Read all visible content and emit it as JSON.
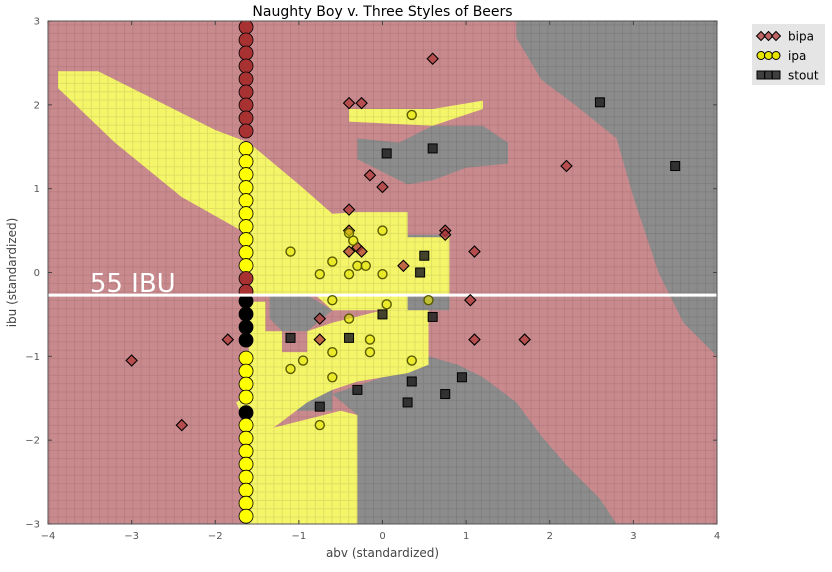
{
  "chart_data": {
    "type": "scatter",
    "title": "Naughty Boy v. Three Styles of Beers",
    "xlabel": "abv (standardized)",
    "ylabel": "ibu (standardized)",
    "xlim": [
      -4,
      4
    ],
    "ylim": [
      -3,
      3
    ],
    "x_ticks": [
      -4,
      -3,
      -2,
      -1,
      0,
      1,
      2,
      3,
      4
    ],
    "y_ticks": [
      -3,
      -2,
      -1,
      0,
      1,
      2,
      3
    ],
    "grid": false,
    "legend_placement": "outside-top-right",
    "annotation": {
      "text": "55 IBU",
      "y": -0.27
    },
    "region_colors": {
      "bipa": "#c98a8e",
      "ipa": "#f5f56a",
      "stout": "#8c8c8c"
    },
    "decision_regions": {
      "ipa": [
        [
          [
            -3.88,
            2.4
          ],
          [
            -3.4,
            2.4
          ],
          [
            -2.6,
            2.0
          ],
          [
            -2.0,
            1.7
          ],
          [
            -1.6,
            1.55
          ],
          [
            -1.0,
            1.05
          ],
          [
            -0.6,
            0.7
          ],
          [
            -0.3,
            0.72
          ],
          [
            0.3,
            0.72
          ],
          [
            0.3,
            0.42
          ],
          [
            0.8,
            0.42
          ],
          [
            0.8,
            -0.27
          ],
          [
            0.3,
            -0.27
          ],
          [
            0.3,
            -0.45
          ],
          [
            -0.6,
            -0.45
          ],
          [
            -0.8,
            -0.27
          ],
          [
            -1.6,
            -0.27
          ],
          [
            -1.6,
            0.45
          ],
          [
            -2.4,
            0.9
          ],
          [
            -3.2,
            1.55
          ],
          [
            -3.88,
            2.2
          ]
        ],
        [
          [
            -1.6,
            -0.35
          ],
          [
            -1.4,
            -0.35
          ],
          [
            -1.4,
            -0.7
          ],
          [
            -1.2,
            -0.7
          ],
          [
            -1.2,
            -0.95
          ],
          [
            -0.9,
            -0.95
          ],
          [
            -0.9,
            -0.7
          ],
          [
            -0.6,
            -0.6
          ],
          [
            0.0,
            -0.45
          ],
          [
            0.55,
            -0.45
          ],
          [
            0.55,
            -1.1
          ],
          [
            0.3,
            -1.2
          ],
          [
            0.0,
            -1.25
          ],
          [
            -0.3,
            -1.3
          ],
          [
            -0.6,
            -1.4
          ],
          [
            -0.9,
            -1.55
          ],
          [
            -1.3,
            -1.85
          ],
          [
            -1.6,
            -1.9
          ],
          [
            -1.75,
            -1.55
          ],
          [
            -1.6,
            -1.45
          ]
        ],
        [
          [
            -1.6,
            -1.9
          ],
          [
            -1.3,
            -1.85
          ],
          [
            -0.9,
            -1.75
          ],
          [
            -0.5,
            -1.65
          ],
          [
            -0.3,
            -1.7
          ],
          [
            -0.3,
            -3.0
          ],
          [
            -1.6,
            -3.0
          ]
        ],
        [
          [
            -0.4,
            1.95
          ],
          [
            0.6,
            1.95
          ],
          [
            1.2,
            2.05
          ],
          [
            1.2,
            1.95
          ],
          [
            0.6,
            1.75
          ],
          [
            -0.4,
            1.8
          ]
        ]
      ],
      "stout": [
        [
          [
            1.6,
            3.0
          ],
          [
            4.0,
            3.0
          ],
          [
            4.0,
            -1.0
          ],
          [
            3.6,
            -0.6
          ],
          [
            3.3,
            0.0
          ],
          [
            3.0,
            0.9
          ],
          [
            2.8,
            1.6
          ],
          [
            2.3,
            2.0
          ],
          [
            1.9,
            2.3
          ],
          [
            1.6,
            2.8
          ]
        ],
        [
          [
            -0.3,
            1.6
          ],
          [
            0.2,
            1.55
          ],
          [
            0.6,
            1.75
          ],
          [
            1.2,
            1.75
          ],
          [
            1.5,
            1.55
          ],
          [
            1.5,
            1.3
          ],
          [
            1.0,
            1.25
          ],
          [
            0.6,
            1.1
          ],
          [
            0.3,
            1.05
          ],
          [
            -0.3,
            1.35
          ]
        ],
        [
          [
            -1.35,
            -0.27
          ],
          [
            -0.9,
            -0.27
          ],
          [
            -0.6,
            -0.45
          ],
          [
            -0.9,
            -0.7
          ],
          [
            -1.2,
            -0.7
          ],
          [
            -1.35,
            -0.55
          ]
        ],
        [
          [
            -0.3,
            0.72
          ],
          [
            0.3,
            0.72
          ],
          [
            0.3,
            0.45
          ],
          [
            0.8,
            0.45
          ],
          [
            0.8,
            -0.45
          ],
          [
            0.55,
            -0.45
          ],
          [
            0.55,
            -1.0
          ],
          [
            0.9,
            -1.1
          ],
          [
            1.2,
            -1.25
          ],
          [
            1.6,
            -1.55
          ],
          [
            1.9,
            -1.95
          ],
          [
            2.2,
            -2.3
          ],
          [
            2.6,
            -2.7
          ],
          [
            2.8,
            -3.0
          ],
          [
            -0.3,
            -3.0
          ],
          [
            -0.3,
            -1.7
          ],
          [
            -0.6,
            -1.45
          ],
          [
            0.0,
            -1.25
          ],
          [
            0.3,
            -1.2
          ],
          [
            0.0,
            -0.45
          ],
          [
            -0.3,
            -0.27
          ],
          [
            -0.3,
            0.45
          ]
        ],
        [
          [
            -1.2,
            -1.4
          ],
          [
            -0.6,
            -1.4
          ],
          [
            -0.6,
            -1.65
          ],
          [
            -1.2,
            -1.65
          ]
        ]
      ]
    },
    "boundary_strip": {
      "x": -1.56,
      "segments": [
        {
          "class": "bipa",
          "y": [
            3.0,
            1.55
          ]
        },
        {
          "class": "ipa",
          "y": [
            1.55,
            0.0
          ]
        },
        {
          "class": "bipa",
          "y": [
            0.0,
            -0.27
          ]
        },
        {
          "class": "stout",
          "y": [
            -0.27,
            -0.95
          ]
        },
        {
          "class": "ipa",
          "y": [
            -0.95,
            -1.6
          ]
        },
        {
          "class": "stout",
          "y": [
            -1.6,
            -1.75
          ]
        },
        {
          "class": "ipa",
          "y": [
            -1.75,
            -3.0
          ]
        }
      ]
    },
    "series": [
      {
        "name": "bipa",
        "marker": "diamond",
        "color": "#b03a3a",
        "points": [
          [
            0.6,
            2.55
          ],
          [
            -0.4,
            2.02
          ],
          [
            -0.25,
            2.02
          ],
          [
            -0.15,
            1.16
          ],
          [
            0.0,
            1.02
          ],
          [
            -0.4,
            0.75
          ],
          [
            -0.4,
            0.5
          ],
          [
            0.75,
            0.5
          ],
          [
            0.75,
            0.45
          ],
          [
            -0.3,
            0.3
          ],
          [
            -0.25,
            0.25
          ],
          [
            -0.4,
            0.25
          ],
          [
            0.25,
            0.08
          ],
          [
            1.1,
            0.25
          ],
          [
            2.2,
            1.27
          ],
          [
            1.05,
            -0.33
          ],
          [
            1.1,
            -0.8
          ],
          [
            1.7,
            -0.8
          ],
          [
            -0.75,
            -0.55
          ],
          [
            -0.75,
            -0.8
          ],
          [
            -1.85,
            -0.8
          ],
          [
            -3.0,
            -1.05
          ],
          [
            -2.4,
            -1.82
          ]
        ]
      },
      {
        "name": "ipa",
        "marker": "circle",
        "color": "#e6e600",
        "points": [
          [
            0.35,
            1.88
          ],
          [
            0.0,
            0.5
          ],
          [
            -0.4,
            0.47
          ],
          [
            -0.35,
            0.38
          ],
          [
            -0.3,
            0.08
          ],
          [
            -0.2,
            0.08
          ],
          [
            -1.1,
            0.25
          ],
          [
            -0.6,
            0.13
          ],
          [
            -0.75,
            -0.02
          ],
          [
            -0.4,
            -0.02
          ],
          [
            0.0,
            -0.02
          ],
          [
            -0.6,
            -0.33
          ],
          [
            0.05,
            -0.38
          ],
          [
            0.55,
            -0.33
          ],
          [
            -0.4,
            -0.55
          ],
          [
            -0.15,
            -0.8
          ],
          [
            -0.6,
            -0.95
          ],
          [
            -0.15,
            -0.95
          ],
          [
            0.35,
            -1.05
          ],
          [
            -0.95,
            -1.05
          ],
          [
            -1.1,
            -1.15
          ],
          [
            -0.6,
            -1.25
          ],
          [
            -0.75,
            -1.82
          ]
        ]
      },
      {
        "name": "stout",
        "marker": "square",
        "color": "#222222",
        "points": [
          [
            2.6,
            2.03
          ],
          [
            0.6,
            1.48
          ],
          [
            0.05,
            1.42
          ],
          [
            3.5,
            1.27
          ],
          [
            0.5,
            0.2
          ],
          [
            0.45,
            0.0
          ],
          [
            0.0,
            -0.5
          ],
          [
            0.6,
            -0.53
          ],
          [
            -1.1,
            -0.78
          ],
          [
            -0.4,
            -0.78
          ],
          [
            0.95,
            -1.25
          ],
          [
            0.35,
            -1.3
          ],
          [
            -0.3,
            -1.4
          ],
          [
            0.75,
            -1.45
          ],
          [
            0.3,
            -1.55
          ],
          [
            -0.75,
            -1.6
          ]
        ]
      }
    ]
  }
}
